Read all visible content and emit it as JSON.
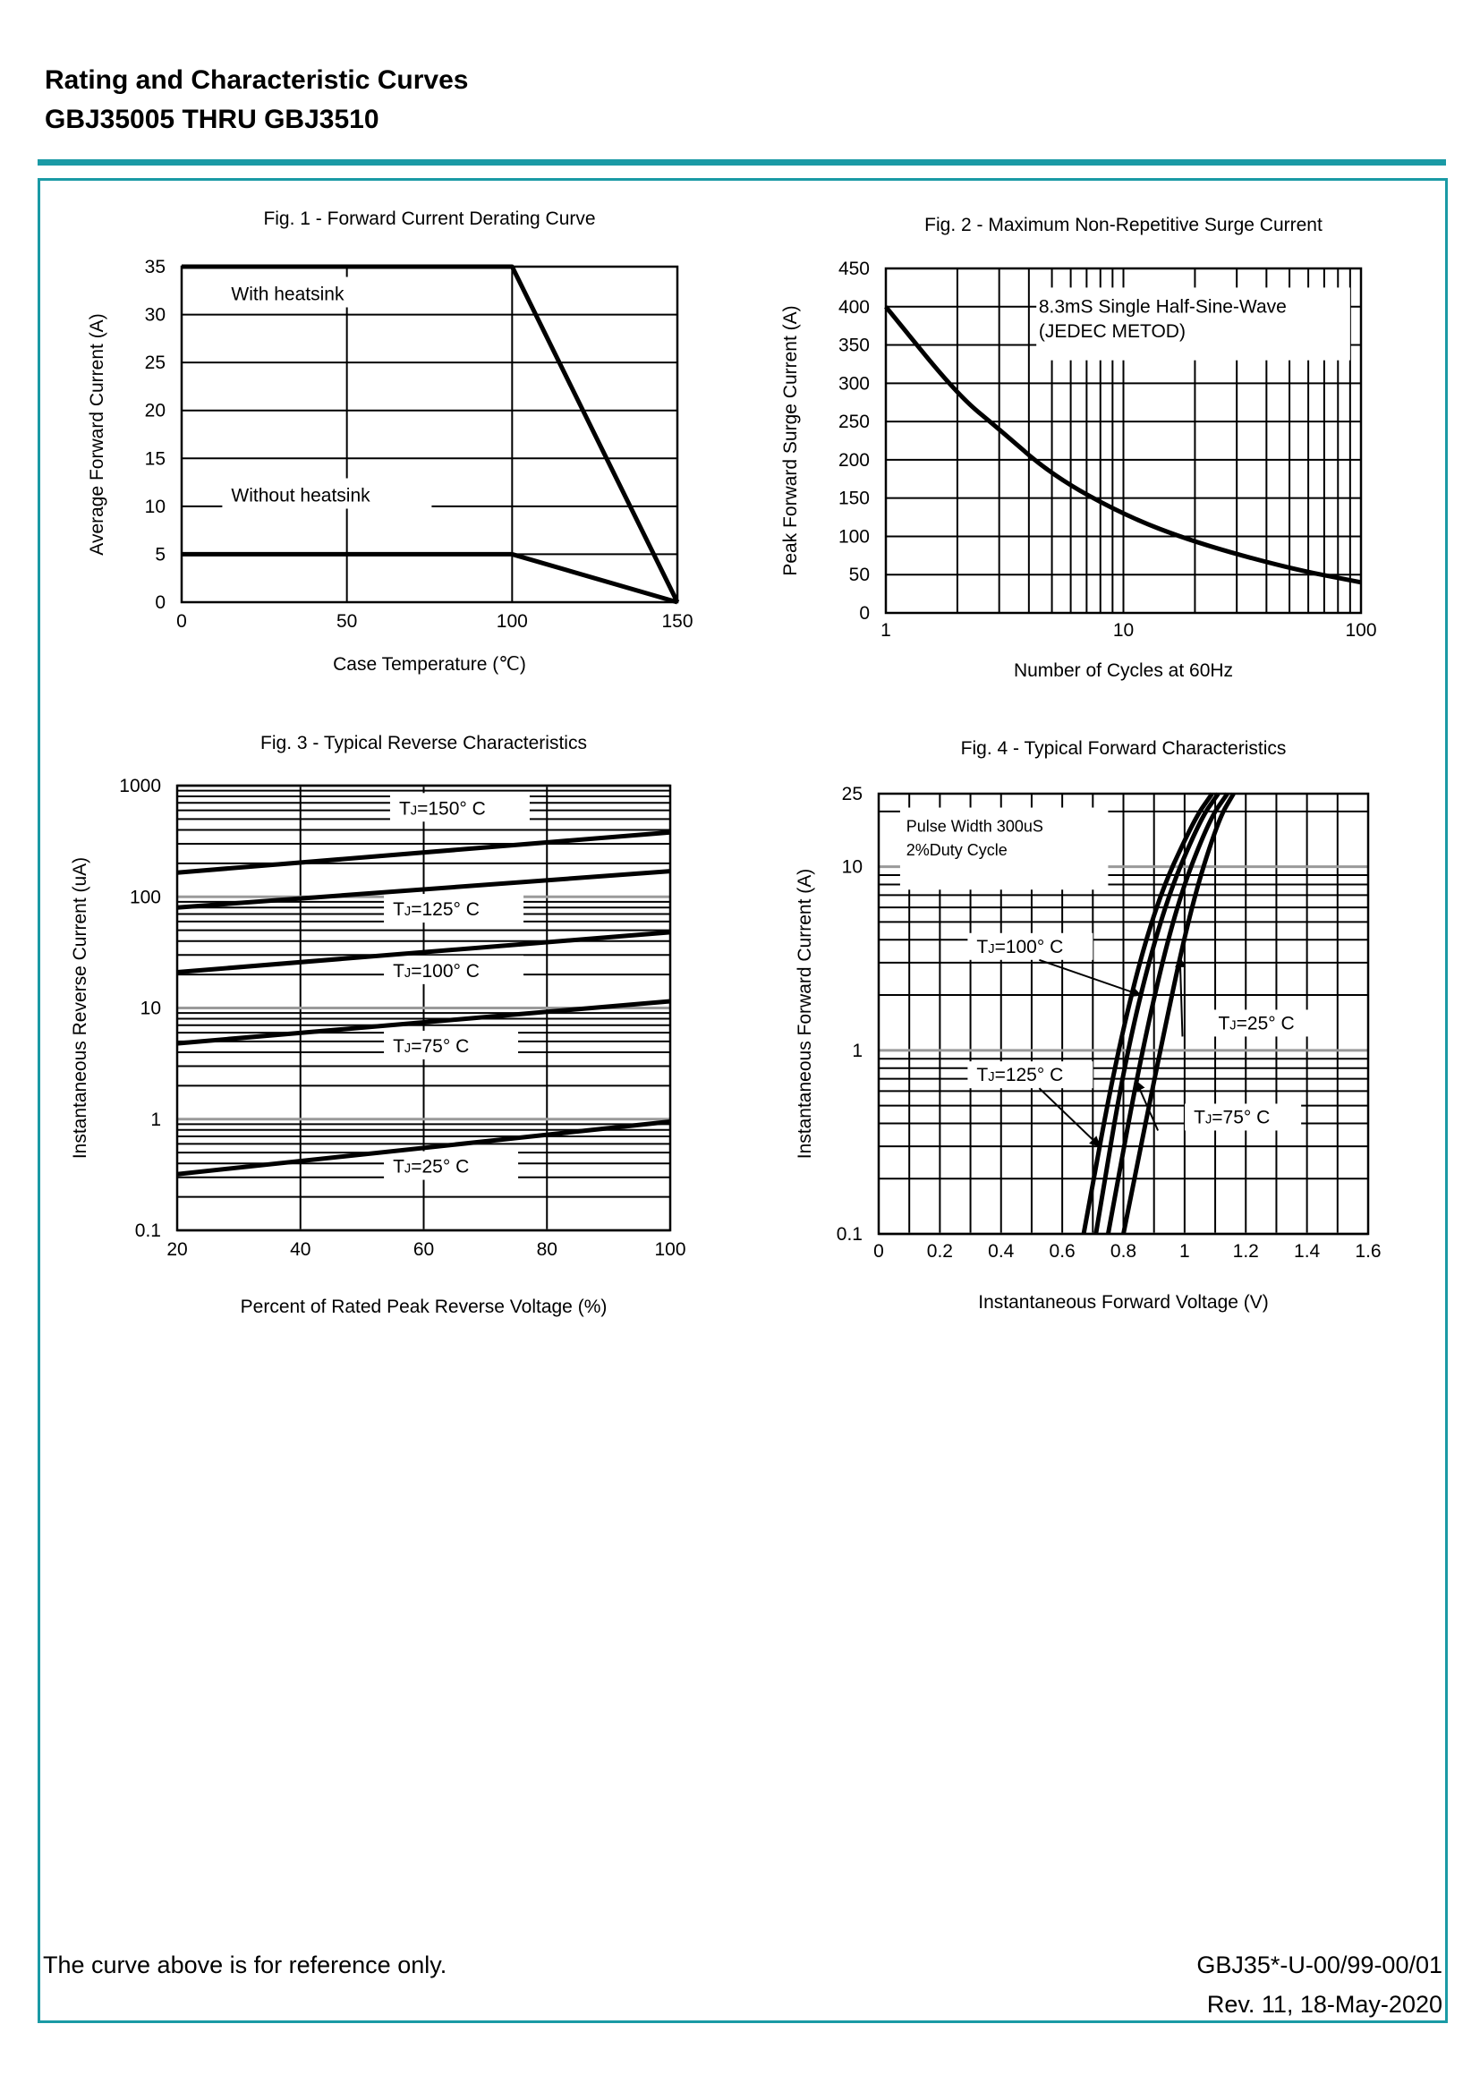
{
  "header": {
    "title": "Rating and Characteristic Curves",
    "subtitle": "GBJ35005 THRU GBJ3510"
  },
  "footer": {
    "note": "The curve above is for reference only.",
    "doc_code": "GBJ35*-U-00/99-00/01",
    "revision": "Rev. 11, 18-May-2020"
  },
  "colors": {
    "accent": "#1a9aa5",
    "grid": "#000000",
    "curve": "#000000"
  },
  "chart_data": [
    {
      "id": "fig1",
      "type": "line",
      "title": "Fig. 1 - Forward Current Derating Curve",
      "xlabel": "Case Temperature (℃)",
      "ylabel": "Average Forward Current (A)",
      "xscale": "linear",
      "xlim": [
        0,
        150
      ],
      "yscale": "linear",
      "ylim": [
        0,
        35
      ],
      "xticks": [
        0,
        50,
        100,
        150
      ],
      "xtick_labels": [
        "0",
        "50",
        "100",
        "150"
      ],
      "yticks": [
        0,
        5,
        10,
        15,
        20,
        25,
        30,
        35
      ],
      "ytick_labels": [
        "0",
        "5",
        "10",
        "15",
        "20",
        "25",
        "30",
        "35"
      ],
      "grid_x": [
        0,
        50,
        100,
        150
      ],
      "grid_y": [
        0,
        5,
        10,
        15,
        20,
        25,
        30,
        35
      ],
      "series": [
        {
          "name": "With heatsink",
          "x": [
            0,
            100,
            150
          ],
          "y": [
            35,
            35,
            0
          ]
        },
        {
          "name": "Without heatsink",
          "x": [
            0,
            100,
            150
          ],
          "y": [
            5,
            5,
            0
          ]
        }
      ],
      "annotations": [
        {
          "text": "With heatsink",
          "x": 15,
          "y": 31.5
        },
        {
          "text": "Without heatsink",
          "x": 15,
          "y": 10.5
        }
      ]
    },
    {
      "id": "fig2",
      "type": "line",
      "title": "Fig. 2 - Maximum Non-Repetitive Surge Current",
      "xlabel": "Number of Cycles at 60Hz",
      "ylabel": "Peak Forward Surge Current (A)",
      "xscale": "log",
      "xlim": [
        1,
        100
      ],
      "yscale": "linear",
      "ylim": [
        0,
        450
      ],
      "xticks": [
        1,
        10,
        100
      ],
      "xtick_labels": [
        "1",
        "10",
        "100"
      ],
      "yticks": [
        0,
        50,
        100,
        150,
        200,
        250,
        300,
        350,
        400,
        450
      ],
      "ytick_labels": [
        "0",
        "50",
        "100",
        "150",
        "200",
        "250",
        "300",
        "350",
        "400",
        "450"
      ],
      "grid_x": [
        1,
        2,
        3,
        4,
        5,
        6,
        7,
        8,
        9,
        10,
        20,
        30,
        40,
        50,
        60,
        70,
        80,
        90,
        100
      ],
      "grid_y": [
        0,
        50,
        100,
        150,
        200,
        250,
        300,
        350,
        400,
        450
      ],
      "series": [
        {
          "name": "Surge",
          "x": [
            1,
            2,
            3,
            5,
            10,
            20,
            50,
            100
          ],
          "y": [
            400,
            285,
            240,
            180,
            128,
            92,
            58,
            40
          ]
        }
      ],
      "annotations": [
        {
          "text": "8.3mS Single Half-Sine-Wave",
          "x": 4.4,
          "y": 392
        },
        {
          "text": "(JEDEC METOD)",
          "x": 4.4,
          "y": 360
        }
      ]
    },
    {
      "id": "fig3",
      "type": "line",
      "title": "Fig. 3 - Typical Reverse Characteristics",
      "xlabel": "Percent of Rated Peak Reverse Voltage (%)",
      "ylabel": "Instantaneous Reverse Current (uA)",
      "xscale": "linear",
      "xlim": [
        20,
        100
      ],
      "yscale": "log",
      "ylim": [
        0.1,
        1000
      ],
      "xticks": [
        20,
        40,
        60,
        80,
        100
      ],
      "xtick_labels": [
        "20",
        "40",
        "60",
        "80",
        "100"
      ],
      "yticks": [
        0.1,
        1,
        10,
        100,
        1000
      ],
      "ytick_labels": [
        "0.1",
        "1",
        "10",
        "100",
        "1000"
      ],
      "grid_x": [
        20,
        40,
        60,
        80,
        100
      ],
      "grid_y": [
        0.1,
        0.2,
        0.3,
        0.4,
        0.5,
        0.6,
        0.7,
        0.8,
        0.9,
        1,
        2,
        3,
        4,
        5,
        6,
        7,
        8,
        9,
        10,
        20,
        30,
        40,
        50,
        60,
        70,
        80,
        90,
        100,
        200,
        300,
        400,
        500,
        600,
        700,
        800,
        900,
        1000
      ],
      "series": [
        {
          "name": "TJ=150° C",
          "x": [
            20,
            100
          ],
          "y": [
            165,
            380
          ]
        },
        {
          "name": "TJ=125° C",
          "x": [
            20,
            100
          ],
          "y": [
            80,
            170
          ]
        },
        {
          "name": "TJ=100° C",
          "x": [
            20,
            100
          ],
          "y": [
            21,
            48
          ]
        },
        {
          "name": "TJ=75° C",
          "x": [
            20,
            100
          ],
          "y": [
            4.8,
            11.5
          ]
        },
        {
          "name": "TJ=25° C",
          "x": [
            20,
            100
          ],
          "y": [
            0.32,
            0.95
          ]
        }
      ],
      "annotations": [
        {
          "text": "TJ=150° C",
          "x": 56,
          "y": 550
        },
        {
          "text": "TJ=125° C",
          "x": 55,
          "y": 68
        },
        {
          "text": "TJ=100° C",
          "x": 55,
          "y": 19
        },
        {
          "text": "TJ=75° C",
          "x": 55,
          "y": 4
        },
        {
          "text": "TJ=25° C",
          "x": 55,
          "y": 0.33
        }
      ]
    },
    {
      "id": "fig4",
      "type": "line",
      "title": "Fig. 4 - Typical Forward Characteristics",
      "xlabel": "Instantaneous Forward Voltage (V)",
      "ylabel": "Instantaneous Forward Current (A)",
      "xscale": "linear",
      "xlim": [
        0,
        1.6
      ],
      "yscale": "log",
      "ylim": [
        0.1,
        25
      ],
      "xticks": [
        0,
        0.2,
        0.4,
        0.6,
        0.8,
        1,
        1.2,
        1.4,
        1.6
      ],
      "xtick_labels": [
        "0",
        "0.2",
        "0.4",
        "0.6",
        "0.8",
        "1",
        "1.2",
        "1.4",
        "1.6"
      ],
      "yticks": [
        0.1,
        1,
        10,
        25
      ],
      "ytick_labels": [
        "0.1",
        "1",
        "10",
        "25"
      ],
      "grid_x": [
        0,
        0.1,
        0.2,
        0.3,
        0.4,
        0.5,
        0.6,
        0.7,
        0.8,
        0.9,
        1,
        1.1,
        1.2,
        1.3,
        1.4,
        1.5,
        1.6
      ],
      "grid_y": [
        0.1,
        0.2,
        0.3,
        0.4,
        0.5,
        0.6,
        0.7,
        0.8,
        0.9,
        1,
        2,
        3,
        4,
        5,
        6,
        7,
        8,
        9,
        10,
        20,
        25
      ],
      "series": [
        {
          "name": "TJ=125° C",
          "x": [
            0.67,
            0.78,
            0.9,
            1.03,
            1.09
          ],
          "y": [
            0.1,
            1,
            6,
            18,
            25
          ]
        },
        {
          "name": "TJ=100° C",
          "x": [
            0.71,
            0.81,
            0.93,
            1.05,
            1.11
          ],
          "y": [
            0.1,
            1,
            6,
            18,
            25
          ]
        },
        {
          "name": "TJ=75° C",
          "x": [
            0.75,
            0.86,
            0.97,
            1.08,
            1.14
          ],
          "y": [
            0.1,
            1,
            6,
            18,
            25
          ]
        },
        {
          "name": "TJ=25° C",
          "x": [
            0.8,
            0.92,
            1.02,
            1.11,
            1.16
          ],
          "y": [
            0.1,
            1,
            6,
            18,
            25
          ]
        }
      ],
      "annotations": [
        {
          "text": "Pulse Width 300uS",
          "x": 0.09,
          "y": 15.5
        },
        {
          "text": "2%Duty Cycle",
          "x": 0.09,
          "y": 11.5
        },
        {
          "text": "TJ=100° C",
          "x": 0.32,
          "y": 3.4
        },
        {
          "text": "TJ=25° C",
          "x": 1.11,
          "y": 1.3
        },
        {
          "text": "TJ=125° C",
          "x": 0.32,
          "y": 0.68
        },
        {
          "text": "TJ=75° C",
          "x": 1.03,
          "y": 0.4
        }
      ]
    }
  ]
}
